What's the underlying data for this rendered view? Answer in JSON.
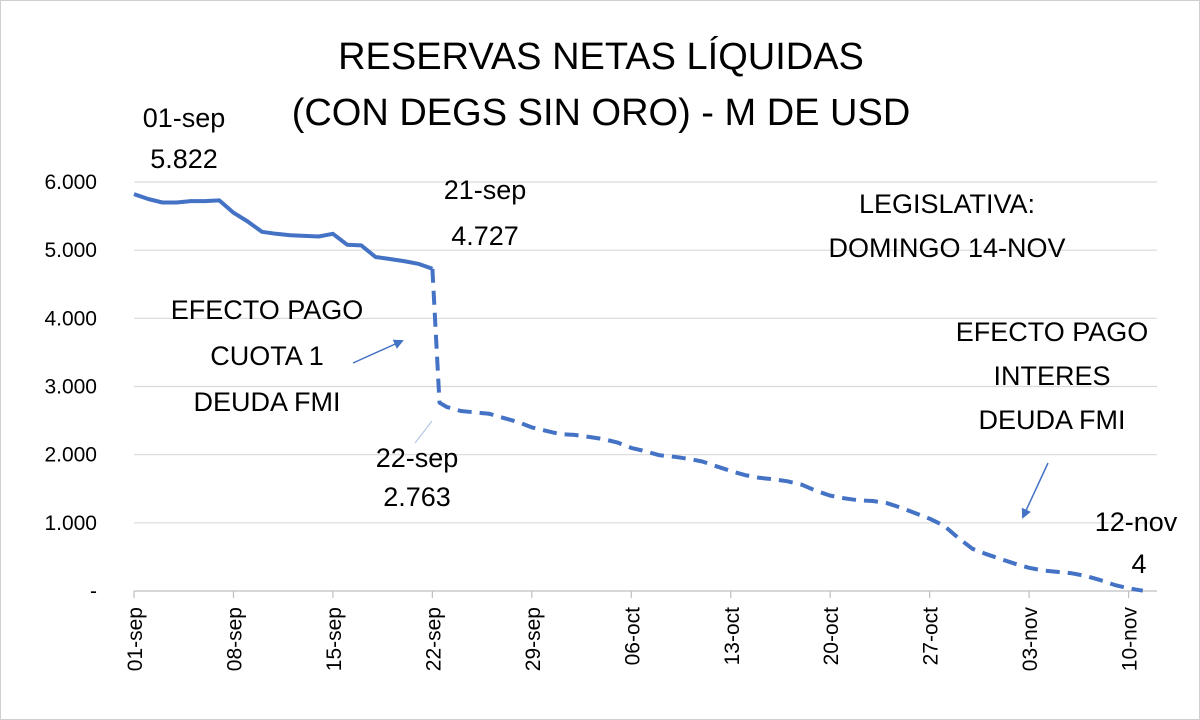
{
  "chart_data": {
    "type": "line",
    "title_line1": "RESERVAS NETAS LÍQUIDAS",
    "title_line2": "(CON DEGS SIN ORO) - M DE USD",
    "ylim": [
      0,
      6000
    ],
    "y_ticks": [
      {
        "value": 0,
        "label": "-"
      },
      {
        "value": 1000,
        "label": "1.000"
      },
      {
        "value": 2000,
        "label": "2.000"
      },
      {
        "value": 3000,
        "label": "3.000"
      },
      {
        "value": 4000,
        "label": "4.000"
      },
      {
        "value": 5000,
        "label": "5.000"
      },
      {
        "value": 6000,
        "label": "6.000"
      }
    ],
    "grid": true,
    "x_start": "01-sep",
    "x_ticks": [
      {
        "day": 0,
        "label": "01-sep"
      },
      {
        "day": 7,
        "label": "08-sep"
      },
      {
        "day": 14,
        "label": "15-sep"
      },
      {
        "day": 21,
        "label": "22-sep"
      },
      {
        "day": 28,
        "label": "29-sep"
      },
      {
        "day": 35,
        "label": "06-oct"
      },
      {
        "day": 42,
        "label": "13-oct"
      },
      {
        "day": 49,
        "label": "20-oct"
      },
      {
        "day": 56,
        "label": "27-oct"
      },
      {
        "day": 63,
        "label": "03-nov"
      },
      {
        "day": 70,
        "label": "10-nov"
      }
    ],
    "series": [
      {
        "style": "solid",
        "color": "#4472c4",
        "points": [
          [
            0,
            5822
          ],
          [
            1,
            5750
          ],
          [
            2,
            5700
          ],
          [
            3,
            5700
          ],
          [
            4,
            5720
          ],
          [
            5,
            5720
          ],
          [
            6,
            5730
          ],
          [
            7,
            5550
          ],
          [
            8,
            5420
          ],
          [
            9,
            5270
          ],
          [
            10,
            5240
          ],
          [
            11,
            5220
          ],
          [
            12,
            5210
          ],
          [
            13,
            5200
          ],
          [
            14,
            5240
          ],
          [
            15,
            5080
          ],
          [
            16,
            5070
          ],
          [
            17,
            4900
          ],
          [
            18,
            4870
          ],
          [
            19,
            4840
          ],
          [
            20,
            4800
          ],
          [
            21,
            4727
          ]
        ]
      },
      {
        "style": "dashed",
        "color": "#4472c4",
        "points": [
          [
            21,
            4727
          ],
          [
            21.5,
            2763
          ],
          [
            22,
            2700
          ],
          [
            23,
            2640
          ],
          [
            24,
            2620
          ],
          [
            25,
            2600
          ],
          [
            26,
            2540
          ],
          [
            27,
            2480
          ],
          [
            28,
            2400
          ],
          [
            29,
            2350
          ],
          [
            30,
            2300
          ],
          [
            31,
            2290
          ],
          [
            32,
            2260
          ],
          [
            33,
            2230
          ],
          [
            34,
            2180
          ],
          [
            35,
            2100
          ],
          [
            36,
            2050
          ],
          [
            37,
            1990
          ],
          [
            38,
            1970
          ],
          [
            39,
            1940
          ],
          [
            40,
            1900
          ],
          [
            41,
            1830
          ],
          [
            42,
            1760
          ],
          [
            43,
            1700
          ],
          [
            44,
            1660
          ],
          [
            45,
            1640
          ],
          [
            46,
            1610
          ],
          [
            47,
            1560
          ],
          [
            48,
            1470
          ],
          [
            49,
            1400
          ],
          [
            50,
            1360
          ],
          [
            51,
            1330
          ],
          [
            52,
            1320
          ],
          [
            53,
            1290
          ],
          [
            54,
            1220
          ],
          [
            55,
            1140
          ],
          [
            56,
            1060
          ],
          [
            57,
            960
          ],
          [
            58,
            780
          ],
          [
            59,
            620
          ],
          [
            60,
            540
          ],
          [
            61,
            470
          ],
          [
            62,
            400
          ],
          [
            63,
            340
          ],
          [
            64,
            300
          ],
          [
            65,
            280
          ],
          [
            66,
            260
          ],
          [
            67,
            220
          ],
          [
            68,
            160
          ],
          [
            69,
            90
          ],
          [
            70,
            40
          ],
          [
            71,
            4
          ]
        ]
      }
    ],
    "annotations": {
      "sep01_date": "01-sep",
      "sep01_value": "5.822",
      "sep21_date": "21-sep",
      "sep21_value": "4.727",
      "sep22_date": "22-sep",
      "sep22_value": "2.763",
      "nov12_date": "12-nov",
      "nov12_value": "4",
      "legislativa_1": "LEGISLATIVA:",
      "legislativa_2": "DOMINGO 14-NOV",
      "cuota_1": "EFECTO PAGO",
      "cuota_2": "CUOTA 1",
      "cuota_3": "DEUDA FMI",
      "interes_1": "EFECTO PAGO",
      "interes_2": "INTERES",
      "interes_3": "DEUDA FMI"
    }
  }
}
